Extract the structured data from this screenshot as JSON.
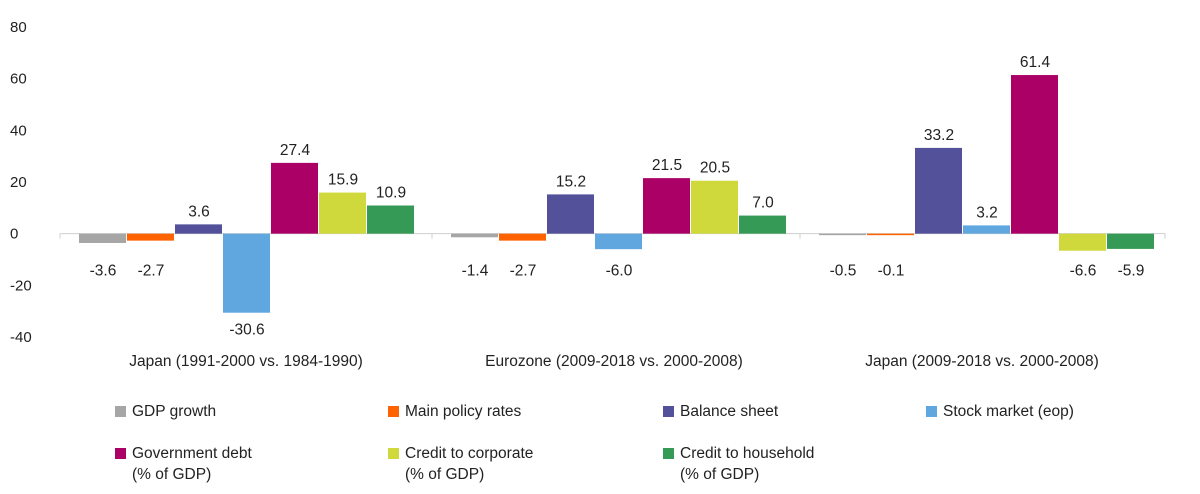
{
  "chart_data": {
    "type": "bar",
    "categories": [
      "Japan (1991-2000 vs. 1984-1990)",
      "Eurozone (2009-2018 vs. 2000-2008)",
      "Japan (2009-2018 vs. 2000-2008)"
    ],
    "ylim": [
      -40,
      80
    ],
    "yticks": [
      "80",
      "60",
      "40",
      "20",
      "0",
      "-20",
      "-40"
    ],
    "ytick_values": [
      80,
      60,
      40,
      20,
      0,
      -20,
      -40
    ],
    "grid": false,
    "legend_position": "bottom",
    "series": [
      {
        "name": "GDP growth",
        "name_line2": "",
        "color": "#a6a6a6",
        "values": [
          -3.6,
          -1.4,
          -0.5
        ],
        "labels": [
          "-3.6",
          "-1.4",
          "-0.5"
        ]
      },
      {
        "name": "Main policy rates",
        "name_line2": "",
        "color": "#ff6200",
        "values": [
          -2.7,
          -2.7,
          -0.1
        ],
        "labels": [
          "-2.7",
          "-2.7",
          "-0.1"
        ]
      },
      {
        "name": "Balance sheet",
        "name_line2": "",
        "color": "#525199",
        "values": [
          3.6,
          15.2,
          33.2
        ],
        "labels": [
          "3.6",
          "15.2",
          "33.2"
        ]
      },
      {
        "name": "Stock market (eop)",
        "name_line2": "",
        "color": "#60a7e0",
        "values": [
          -30.6,
          -6.0,
          3.2
        ],
        "labels": [
          "-30.6",
          "-6.0",
          "3.2"
        ]
      },
      {
        "name": "Government debt",
        "name_line2": "(% of GDP)",
        "color": "#ab0066",
        "values": [
          27.4,
          21.5,
          61.4
        ],
        "labels": [
          "27.4",
          "21.5",
          "61.4"
        ]
      },
      {
        "name": "Credit to corporate",
        "name_line2": "(% of GDP)",
        "color": "#d0d93c",
        "values": [
          15.9,
          20.5,
          -6.6
        ],
        "labels": [
          "15.9",
          "20.5",
          "-6.6"
        ]
      },
      {
        "name": "Credit to household",
        "name_line2": "(% of GDP)",
        "color": "#349a55",
        "values": [
          10.9,
          7.0,
          -5.9
        ],
        "labels": [
          "10.9",
          "7.0",
          "-5.9"
        ]
      }
    ]
  }
}
